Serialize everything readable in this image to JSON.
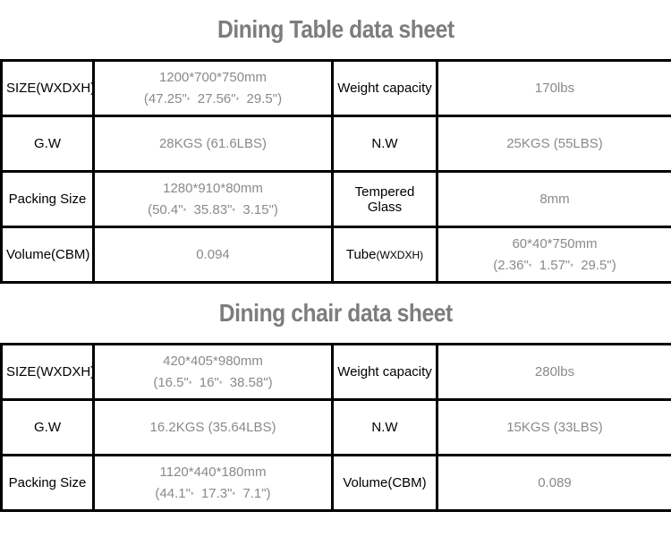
{
  "colors": {
    "title_text": "#7d7d7d",
    "label_text": "#000000",
    "value_text": "#8a8a8a",
    "border": "#000000",
    "background": "#ffffff"
  },
  "tables": [
    {
      "title": "Dining Table data sheet",
      "rows": [
        [
          "SIZE(WXDXH)",
          "1200*700*750mm\n(47.25\"*  27.56\"*  29.5\")",
          "Weight capacity",
          "170lbs"
        ],
        [
          "G.W",
          "28KGS (61.6LBS)",
          "N.W",
          "25KGS (55LBS)"
        ],
        [
          "Packing Size",
          "1280*910*80mm\n(50.4\"*  35.83\"*  3.15\")",
          "Tempered Glass",
          "8mm"
        ],
        [
          "Volume(CBM)",
          "0.094",
          {
            "main": "Tube",
            "suffix": "(WXDXH)"
          },
          "60*40*750mm\n(2.36\"*  1.57\"*  29.5\")"
        ]
      ]
    },
    {
      "title": "Dining chair data sheet",
      "rows": [
        [
          "SIZE(WXDXH)",
          "420*405*980mm\n(16.5\"*  16\"*  38.58\")",
          "Weight capacity",
          "280lbs"
        ],
        [
          "G.W",
          "16.2KGS (35.64LBS)",
          "N.W",
          "15KGS (33LBS)"
        ],
        [
          "Packing Size",
          "1120*440*180mm\n(44.1\"*  17.3\"*  7.1\")",
          "Volume(CBM)",
          "0.089"
        ]
      ]
    }
  ]
}
